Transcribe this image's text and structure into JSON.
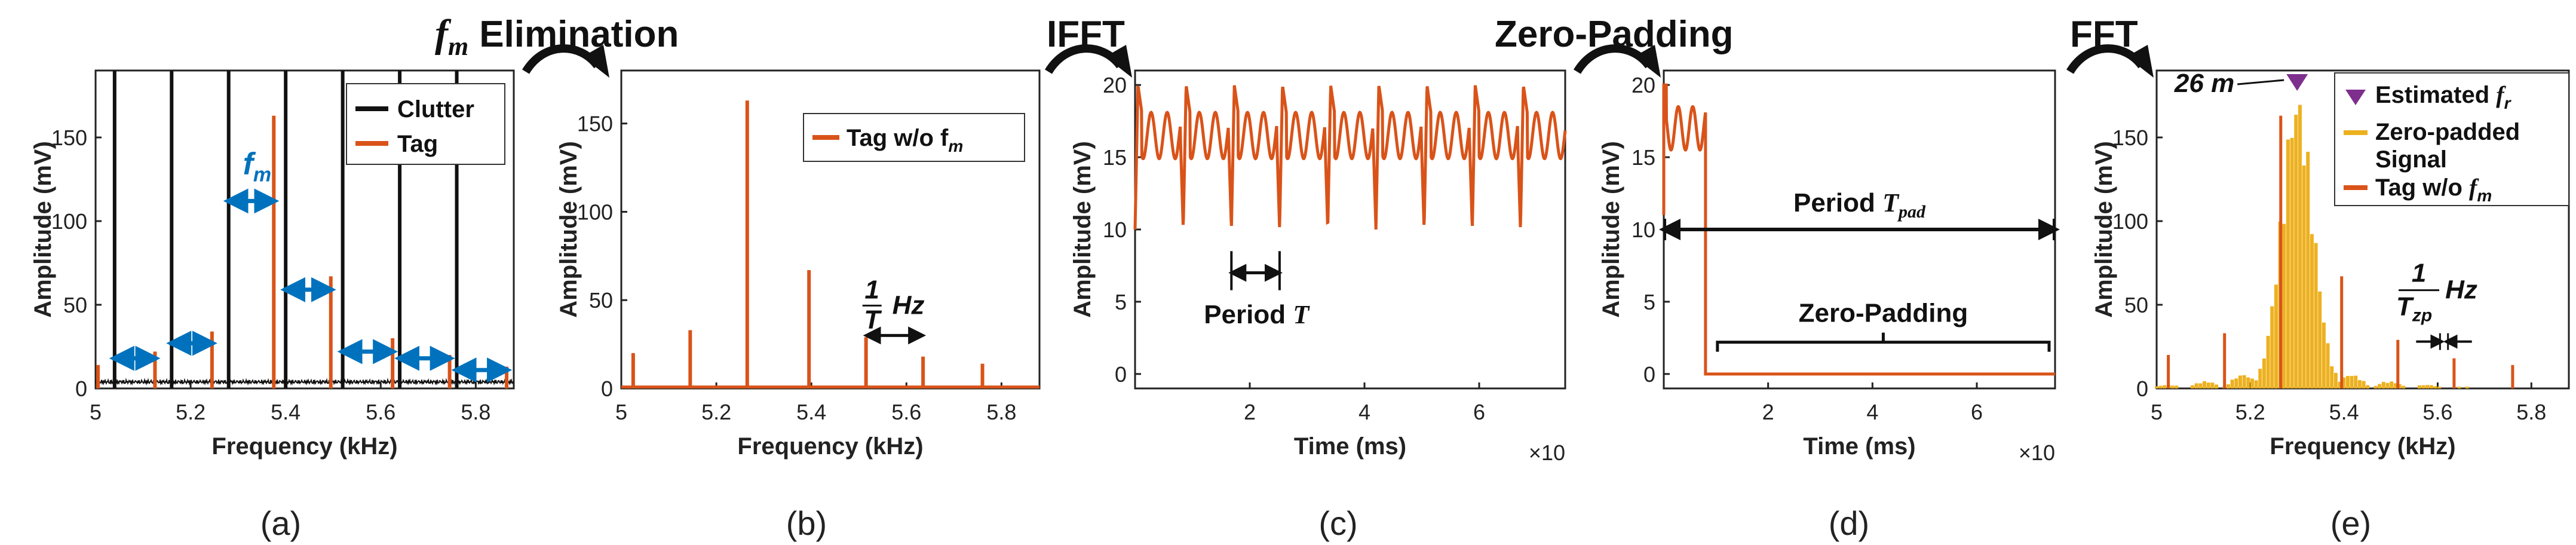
{
  "stages": {
    "fm_elim_f": "f",
    "fm_elim_sub": "m",
    "fm_elim_rest": "Elimination",
    "ifft": "IFFT",
    "zero_padding": "Zero-Padding",
    "fft": "FFT"
  },
  "colors": {
    "clutter": "#111111",
    "tag": "#d95319",
    "zeropad": "#edb120",
    "marker": "#7e2f8e",
    "arrow": "#0072bd"
  },
  "chart_data": [
    {
      "id": "a",
      "type": "bar",
      "sublabel": "(a)",
      "xlabel": "Frequency (kHz)",
      "ylabel": "Amplitude (mV)",
      "xlim": [
        5,
        5.88
      ],
      "ylim": [
        0,
        190
      ],
      "xticks": [
        "5",
        "5.2",
        "5.4",
        "5.6",
        "5.8"
      ],
      "xtick_values": [
        5,
        5.2,
        5.4,
        5.6,
        5.8
      ],
      "yticks": [
        "0",
        "50",
        "100",
        "150"
      ],
      "ytick_values": [
        0,
        50,
        100,
        150
      ],
      "legend": [
        "Clutter",
        "Tag"
      ],
      "series": [
        {
          "name": "Clutter",
          "x": [
            5.04,
            5.16,
            5.28,
            5.4,
            5.52,
            5.64,
            5.76
          ],
          "values": [
            190,
            190,
            190,
            190,
            190,
            190,
            190
          ]
        },
        {
          "name": "Tag",
          "x": [
            5.005,
            5.125,
            5.245,
            5.375,
            5.495,
            5.625,
            5.745,
            5.865
          ],
          "values": [
            14,
            22,
            34,
            163,
            67,
            30,
            20,
            13
          ]
        }
      ],
      "annotations": [
        {
          "text": "f",
          "sub": "m"
        }
      ]
    },
    {
      "id": "b",
      "type": "bar",
      "sublabel": "(b)",
      "xlabel": "Frequency (kHz)",
      "ylabel": "Amplitude (mV)",
      "xlim": [
        5,
        5.88
      ],
      "ylim": [
        0,
        180
      ],
      "xticks": [
        "5",
        "5.2",
        "5.4",
        "5.6",
        "5.8"
      ],
      "xtick_values": [
        5,
        5.2,
        5.4,
        5.6,
        5.8
      ],
      "yticks": [
        "0",
        "50",
        "100",
        "150"
      ],
      "ytick_values": [
        0,
        50,
        100,
        150
      ],
      "legend": [
        "Tag w/o f",
        "m"
      ],
      "series": [
        {
          "name": "Tag w/o fm",
          "x": [
            5.025,
            5.145,
            5.265,
            5.395,
            5.515,
            5.635,
            5.76
          ],
          "values": [
            20,
            33,
            163,
            67,
            29,
            18,
            14
          ]
        }
      ],
      "annotations": [
        {
          "num": "1",
          "den": "T",
          "unit": "Hz"
        }
      ]
    },
    {
      "id": "c",
      "type": "line",
      "sublabel": "(c)",
      "xlabel": "Time (ms)",
      "ylabel": "Amplitude (mV)",
      "xlim": [
        0,
        7.5
      ],
      "ylim": [
        -1,
        21
      ],
      "xticks": [
        "2",
        "4",
        "6"
      ],
      "xtick_values": [
        2,
        4,
        6
      ],
      "yticks": [
        "0",
        "5",
        "10",
        "15",
        "20"
      ],
      "ytick_values": [
        0,
        5,
        10,
        15,
        20
      ],
      "multiplier": "×10",
      "series": [
        {
          "name": "signal",
          "period": 0.84,
          "baseline": 16.5,
          "peak": 20,
          "dip": 10
        }
      ],
      "annotations": [
        {
          "text": "Period ",
          "sym": "T"
        }
      ]
    },
    {
      "id": "d",
      "type": "line",
      "sublabel": "(d)",
      "xlabel": "Time (ms)",
      "ylabel": "Amplitude (mV)",
      "xlim": [
        0,
        7.5
      ],
      "ylim": [
        -1,
        21
      ],
      "xticks": [
        "2",
        "4",
        "6"
      ],
      "xtick_values": [
        2,
        4,
        6
      ],
      "yticks": [
        "0",
        "5",
        "10",
        "15",
        "20"
      ],
      "ytick_values": [
        0,
        5,
        10,
        15,
        20
      ],
      "multiplier": "×10",
      "series": [
        {
          "name": "padded",
          "signal_end": 0.8,
          "baseline": 17,
          "peak": 20
        }
      ],
      "annotations": [
        {
          "text": "Period ",
          "sym": "T",
          "sub": "pad"
        },
        {
          "text": "Zero-Padding"
        }
      ]
    },
    {
      "id": "e",
      "type": "bar",
      "sublabel": "(e)",
      "xlabel": "Frequency (kHz)",
      "ylabel": "Amplitude (mV)",
      "xlim": [
        5,
        5.88
      ],
      "ylim": [
        0,
        190
      ],
      "xticks": [
        "5",
        "5.2",
        "5.4",
        "5.6",
        "5.8"
      ],
      "xtick_values": [
        5,
        5.2,
        5.4,
        5.6,
        5.8
      ],
      "yticks": [
        "0",
        "50",
        "100",
        "150"
      ],
      "ytick_values": [
        0,
        50,
        100,
        150
      ],
      "legend": [
        "Estimated ",
        "r",
        "Zero-padded",
        "Signal",
        "Tag w/o ",
        "m"
      ],
      "peak_label": "26 m",
      "peak_x": 5.3,
      "peak_value": 180,
      "series": [
        {
          "name": "Tag w/o fm",
          "x": [
            5.025,
            5.145,
            5.265,
            5.395,
            5.515,
            5.635,
            5.76
          ],
          "values": [
            20,
            33,
            163,
            67,
            29,
            18,
            14
          ]
        }
      ],
      "annotations": [
        {
          "num": "1",
          "den": "T",
          "densub": "zp",
          "unit": "Hz"
        }
      ]
    }
  ],
  "sublabels": [
    "(a)",
    "(b)",
    "(c)",
    "(d)",
    "(e)"
  ]
}
